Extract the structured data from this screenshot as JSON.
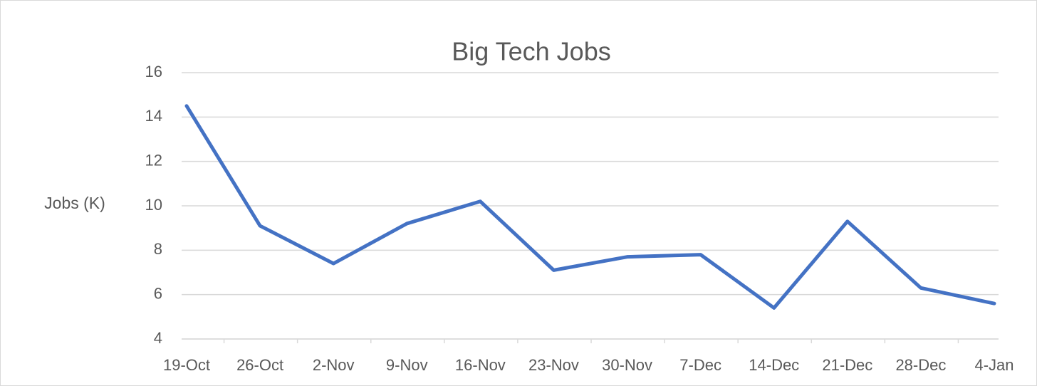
{
  "chart_data": {
    "type": "line",
    "title": "Big Tech Jobs",
    "y_label": "Jobs (K)",
    "categories": [
      "19-Oct",
      "26-Oct",
      "2-Nov",
      "9-Nov",
      "16-Nov",
      "23-Nov",
      "30-Nov",
      "7-Dec",
      "14-Dec",
      "21-Dec",
      "28-Dec",
      "4-Jan"
    ],
    "series": [
      {
        "name": "Jobs",
        "color": "#4472c4",
        "values": [
          14.5,
          9.1,
          7.4,
          9.2,
          10.2,
          7.1,
          7.7,
          7.8,
          5.4,
          9.3,
          6.3,
          5.6
        ]
      }
    ],
    "ylim": [
      4,
      16
    ],
    "yticks": [
      4,
      6,
      8,
      10,
      12,
      14,
      16
    ],
    "grid": true
  }
}
